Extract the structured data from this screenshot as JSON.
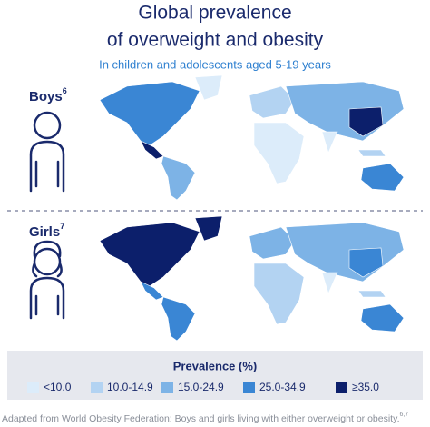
{
  "title": [
    "Global prevalence",
    "of overweight and obesity"
  ],
  "subtitle": "In children and adolescents aged 5-19 years",
  "panels": [
    {
      "label": "Boys",
      "note": "6"
    },
    {
      "label": "Girls",
      "note": "7"
    }
  ],
  "legend": {
    "title": "Prevalence (%)",
    "items": [
      {
        "label": "<10.0",
        "color": "#dcecfa"
      },
      {
        "label": "10.0-14.9",
        "color": "#b3d3f2"
      },
      {
        "label": "15.0-24.9",
        "color": "#7db3e6"
      },
      {
        "label": "25.0-34.9",
        "color": "#3a86d4"
      },
      {
        "label": "≥35.0",
        "color": "#0c1f6b"
      }
    ]
  },
  "footnote": {
    "text": "Adapted from World Obesity Federation: Boys and girls living with either overweight or obesity.",
    "note": "6,7"
  }
}
